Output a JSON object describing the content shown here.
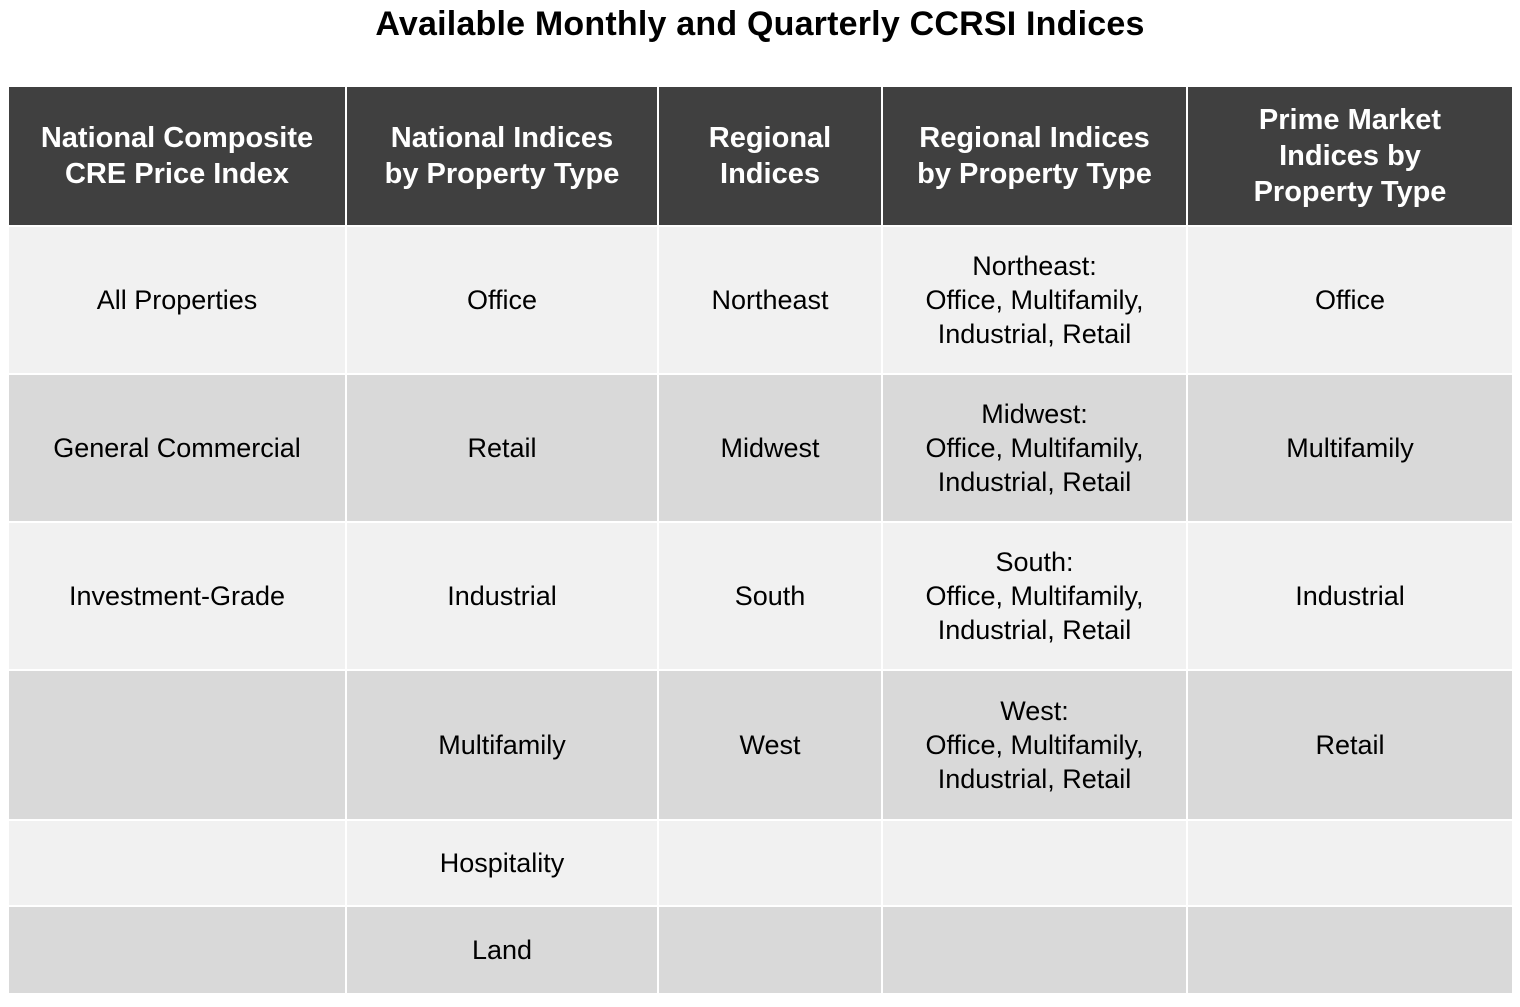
{
  "title": "Available Monthly and Quarterly CCRSI Indices",
  "columns": [
    "National Composite\nCRE Price Index",
    "National Indices\nby Property Type",
    "Regional\nIndices",
    "Regional Indices\nby Property Type",
    "Prime Market\nIndices by\nProperty Type"
  ],
  "rows": [
    {
      "national_composite": "All Properties",
      "national_by_type": "Office",
      "regional": "Northeast",
      "regional_by_type_region": "Northeast:",
      "regional_by_type_line1": "Office, Multifamily,",
      "regional_by_type_line2": "Industrial, Retail",
      "prime_market": "Office"
    },
    {
      "national_composite": "General Commercial",
      "national_by_type": "Retail",
      "regional": "Midwest",
      "regional_by_type_region": "Midwest:",
      "regional_by_type_line1": "Office, Multifamily,",
      "regional_by_type_line2": "Industrial, Retail",
      "prime_market": "Multifamily"
    },
    {
      "national_composite": "Investment-Grade",
      "national_by_type": "Industrial",
      "regional": "South",
      "regional_by_type_region": "South:",
      "regional_by_type_line1": "Office, Multifamily,",
      "regional_by_type_line2": "Industrial, Retail",
      "prime_market": "Industrial"
    },
    {
      "national_composite": "",
      "national_by_type": "Multifamily",
      "regional": "West",
      "regional_by_type_region": "West:",
      "regional_by_type_line1": "Office, Multifamily,",
      "regional_by_type_line2": "Industrial, Retail",
      "prime_market": "Retail"
    },
    {
      "national_composite": "",
      "national_by_type": "Hospitality",
      "regional": "",
      "regional_by_type_region": "",
      "regional_by_type_line1": "",
      "regional_by_type_line2": "",
      "prime_market": ""
    },
    {
      "national_composite": "",
      "national_by_type": "Land",
      "regional": "",
      "regional_by_type_region": "",
      "regional_by_type_line1": "",
      "regional_by_type_line2": "",
      "prime_market": ""
    }
  ],
  "colors": {
    "header_bg": "#404040",
    "header_text": "#ffffff",
    "row_light": "#f1f1f1",
    "row_dark": "#d9d9d9"
  }
}
